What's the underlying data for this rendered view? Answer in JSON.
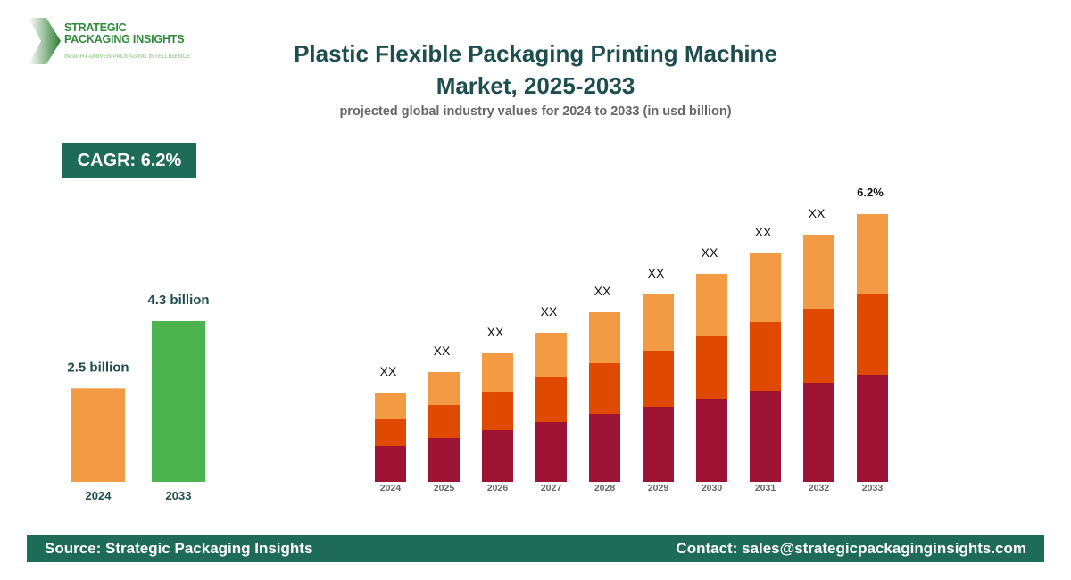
{
  "logo": {
    "line1": "STRATEGIC",
    "line2": "PACKAGING INSIGHTS",
    "tagline": "INSIGHT-DRIVEN PACKAGING INTELLIGENCE"
  },
  "header": {
    "title": "Plastic Flexible Packaging Printing Machine Market, 2025-2033",
    "subtitle": "projected global industry values for 2024 to 2033 (in usd billion)"
  },
  "cagr_badge": "CAGR: 6.2%",
  "colors": {
    "orange_light": "#f39a45",
    "orange_dark": "#e04a00",
    "crimson": "#9e1233",
    "green": "#4cb34f",
    "teal": "#1e6b58"
  },
  "chart_data": [
    {
      "type": "bar",
      "categories": [
        "2024",
        "2033"
      ],
      "values": [
        2.5,
        4.3
      ],
      "data_labels": [
        "2.5 billion",
        "4.3 billion"
      ],
      "colors": [
        "#f39a45",
        "#4cb34f"
      ]
    },
    {
      "type": "bar",
      "stacked": true,
      "categories": [
        "2024",
        "2025",
        "2026",
        "2027",
        "2028",
        "2029",
        "2030",
        "2031",
        "2032",
        "2033"
      ],
      "series": [
        {
          "color": "#9e1233",
          "values": [
            40,
            49,
            58,
            67,
            76,
            84,
            93,
            102,
            111,
            120
          ]
        },
        {
          "color": "#e04a00",
          "values": [
            30,
            37,
            43,
            50,
            57,
            63,
            70,
            77,
            83,
            90
          ]
        },
        {
          "color": "#f39a45",
          "values": [
            30,
            37,
            43,
            50,
            57,
            63,
            70,
            77,
            83,
            90
          ]
        }
      ],
      "data_labels": [
        "XX",
        "XX",
        "XX",
        "XX",
        "XX",
        "XX",
        "XX",
        "XX",
        "XX",
        "6.2%"
      ]
    }
  ],
  "footer": {
    "source": "Source: Strategic Packaging Insights",
    "contact": "Contact: sales@strategicpackaginginsights.com"
  }
}
